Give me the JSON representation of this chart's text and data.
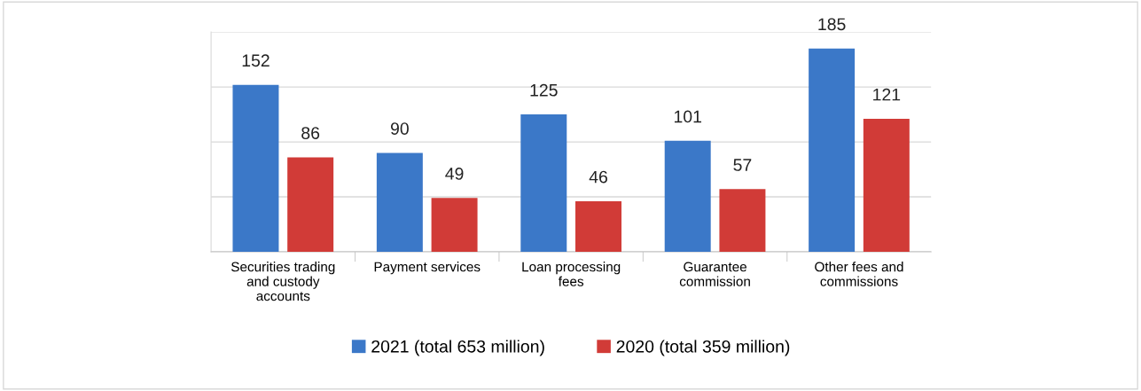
{
  "chart_data": {
    "type": "bar",
    "categories": [
      "Securities trading\nand custody\naccounts",
      "Payment services",
      "Loan processing\nfees",
      "Guarantee\ncommission",
      "Other fees and\ncommissions"
    ],
    "series": [
      {
        "name": "2021 (total 653 million)",
        "color": "#3b78c8",
        "values": [
          152,
          90,
          125,
          101,
          185
        ]
      },
      {
        "name": "2020 (total 359 million)",
        "color": "#d13b37",
        "values": [
          86,
          49,
          46,
          57,
          121
        ]
      }
    ],
    "ylim": [
      0,
      200
    ],
    "yticks": [
      {
        "value": 0,
        "label": null
      },
      {
        "value": 50,
        "label": null
      },
      {
        "value": 100,
        "label": null
      },
      {
        "value": 150,
        "label": null
      },
      {
        "value": 200,
        "label": null
      }
    ],
    "tick_labels": "x",
    "grid": "y",
    "data_labels": true,
    "legend": "bottom"
  }
}
